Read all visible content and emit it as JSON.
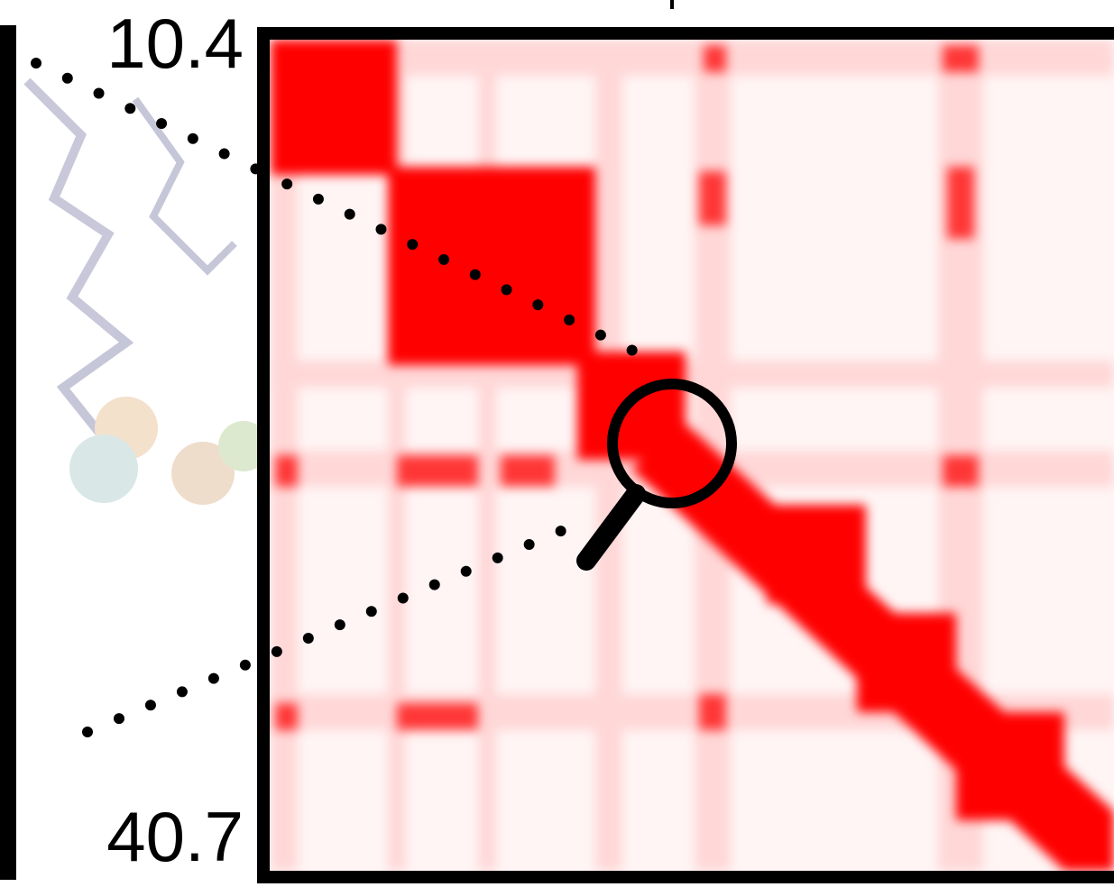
{
  "labels": {
    "top": "10.4",
    "bottom": "40.7"
  }
}
